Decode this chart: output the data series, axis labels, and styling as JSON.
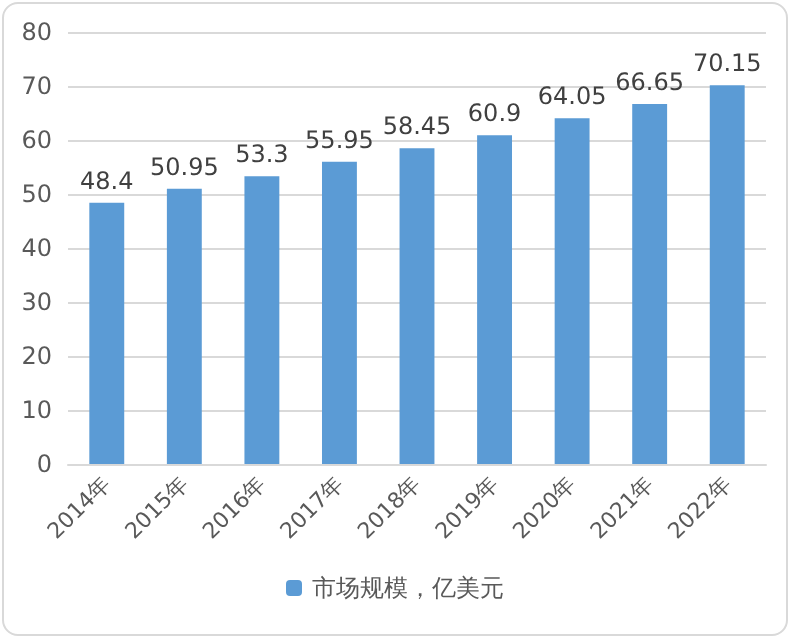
{
  "chart_data": {
    "type": "bar",
    "categories": [
      "2014年",
      "2015年",
      "2016年",
      "2017年",
      "2018年",
      "2019年",
      "2020年",
      "2021年",
      "2022年"
    ],
    "series": [
      {
        "name": "市场规模，亿美元",
        "color": "#5b9bd5",
        "values": [
          48.4,
          50.95,
          53.3,
          55.95,
          58.45,
          60.9,
          64.05,
          66.65,
          70.15
        ]
      }
    ],
    "ylim": [
      0,
      80
    ],
    "yticks": [
      0,
      10,
      20,
      30,
      40,
      50,
      60,
      70,
      80
    ],
    "grid": "y",
    "legend": "bottom",
    "data_labels": true
  }
}
